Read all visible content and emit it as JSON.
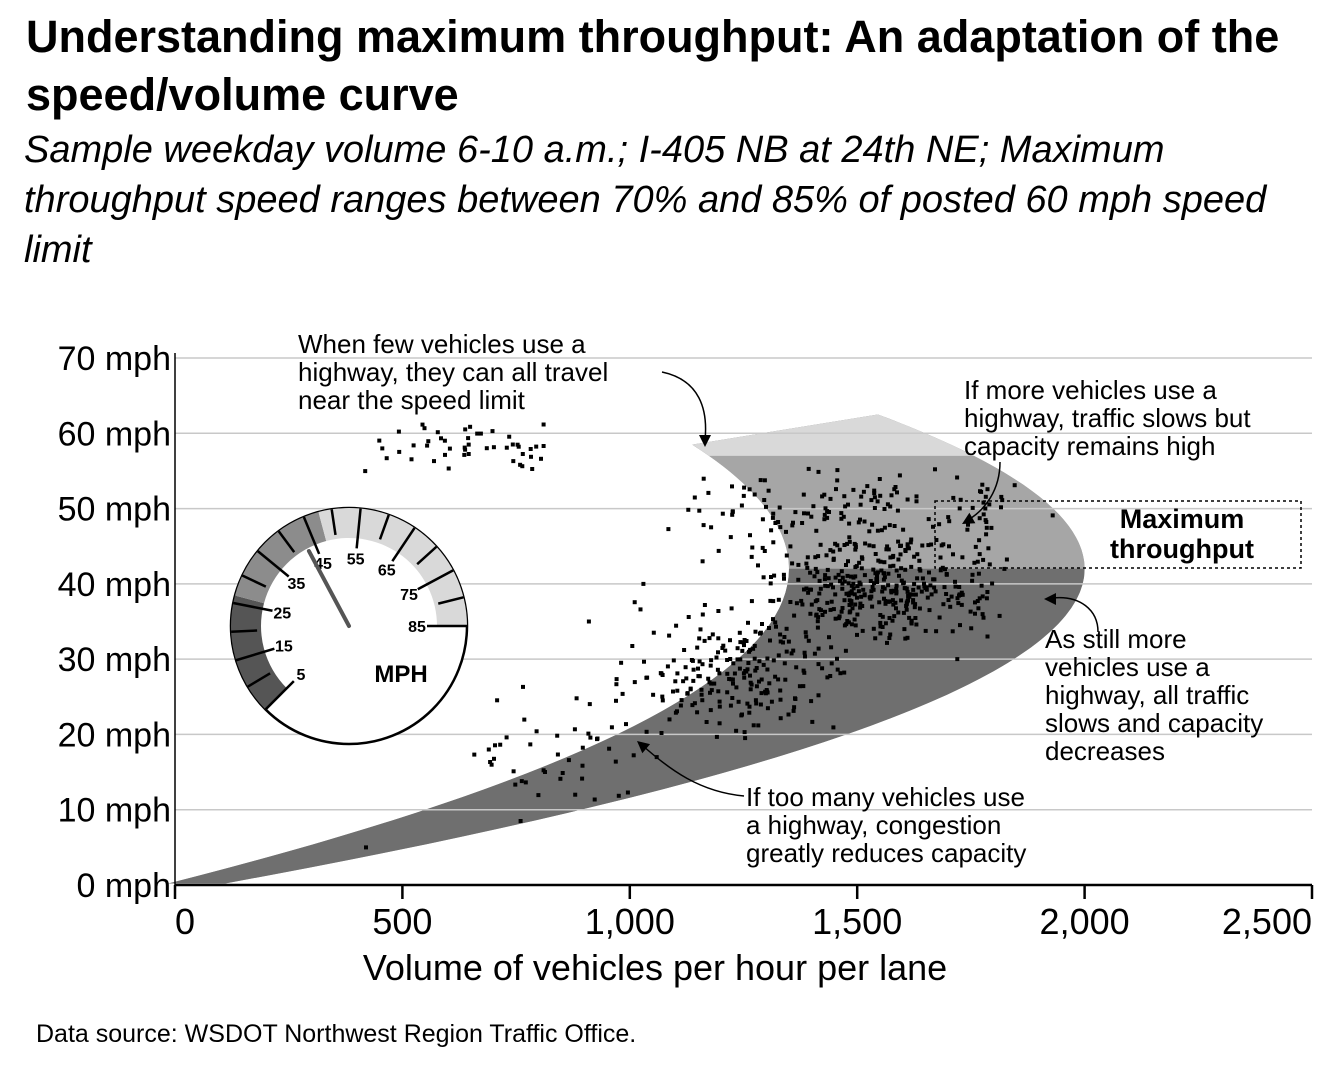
{
  "title": "Understanding maximum throughput: An adaptation of the speed/volume curve",
  "subtitle": "Sample weekday volume 6-10 a.m.; I-405 NB at 24th NE; Maximum throughput speed ranges between 70% and 85% of posted 60 mph speed limit",
  "footnote": "Data source: WSDOT Northwest Region Traffic Office.",
  "chart_data": {
    "type": "scatter",
    "xlabel": "Volume of vehicles per hour per lane",
    "ylabel": "",
    "xlim": [
      0,
      2500
    ],
    "ylim": [
      0,
      70
    ],
    "grid": true,
    "x_ticks": [
      "0",
      "500",
      "1,000",
      "1,500",
      "2,000",
      "2,500"
    ],
    "y_ticks": [
      "0 mph",
      "10 mph",
      "20 mph",
      "30 mph",
      "40 mph",
      "50 mph",
      "60 mph",
      "70 mph"
    ],
    "clusters": [
      {
        "x": [
          350,
          950
        ],
        "y": [
          54,
          62
        ],
        "n": 48
      },
      {
        "x": [
          1050,
          1950
        ],
        "y": [
          43,
          56
        ],
        "n": 150
      },
      {
        "x": [
          1250,
          1850
        ],
        "y": [
          32,
          47
        ],
        "n": 360
      },
      {
        "x": [
          950,
          1500
        ],
        "y": [
          18,
          38
        ],
        "n": 220
      },
      {
        "x": [
          600,
          1100
        ],
        "y": [
          8,
          28
        ],
        "n": 45
      }
    ],
    "points": [
      {
        "x": 420,
        "y": 5
      },
      {
        "x": 760,
        "y": 8.5
      },
      {
        "x": 880,
        "y": 12
      },
      {
        "x": 910,
        "y": 35
      },
      {
        "x": 1030,
        "y": 40
      },
      {
        "x": 1160,
        "y": 43
      },
      {
        "x": 1720,
        "y": 30
      },
      {
        "x": 690,
        "y": 18
      }
    ],
    "annotations": [
      {
        "text": [
          "When few vehicles use a",
          "highway, they can all travel",
          "near the speed limit"
        ]
      },
      {
        "text": [
          "If more vehicles use a",
          "highway, traffic slows but",
          "capacity remains high"
        ]
      },
      {
        "text": [
          "Maximum",
          "throughput"
        ]
      },
      {
        "text": [
          "As still more",
          "vehicles use a",
          "highway, all traffic",
          "slows and capacity",
          "decreases"
        ]
      },
      {
        "text": [
          "If too many vehicles use",
          "a highway, congestion",
          "greatly reduces capacity"
        ]
      }
    ],
    "gauge": {
      "labels": [
        "5",
        "15",
        "25",
        "35",
        "45",
        "55",
        "65",
        "75",
        "85"
      ],
      "unit": "MPH",
      "reading": 43
    },
    "colors": {
      "band_light": "#d9d9d9",
      "band_mid": "#a6a6a6",
      "band_dark": "#6f6f6f",
      "gridline": "#c8c8c8",
      "points": "#000000"
    }
  }
}
